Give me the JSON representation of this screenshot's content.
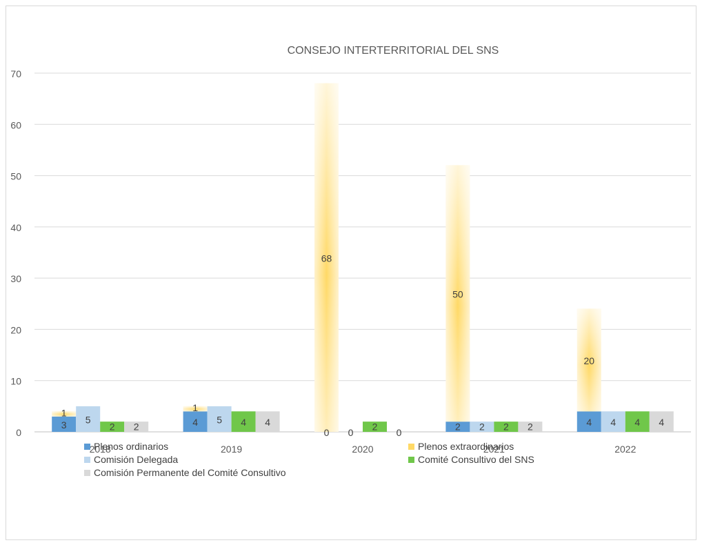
{
  "chart_data": {
    "type": "bar",
    "title": "CONSEJO INTERTERRITORIAL DEL SNS",
    "categories": [
      "2018",
      "2019",
      "2020",
      "2021",
      "2022"
    ],
    "ylim": [
      0,
      70
    ],
    "yticks": [
      0,
      10,
      20,
      30,
      40,
      50,
      60,
      70
    ],
    "ytick_labels": [
      "0",
      "10",
      "20",
      "30",
      "40",
      "50",
      "60",
      "70"
    ],
    "grid": true,
    "legend_position": "bottom",
    "series": [
      {
        "name": "Plenos ordinarios",
        "values": [
          3,
          4,
          0,
          2,
          4
        ],
        "labels": [
          "3",
          "4",
          "0",
          "2",
          "4"
        ],
        "color": "#5b9bd5",
        "stack": "plenos"
      },
      {
        "name": "Plenos extraordinarios",
        "values": [
          1,
          1,
          68,
          50,
          20
        ],
        "labels": [
          "1",
          "1",
          "68",
          "50",
          "20"
        ],
        "color": "#ffd966",
        "stack": "plenos"
      },
      {
        "name": "Comisión Delegada",
        "values": [
          5,
          5,
          0,
          2,
          4
        ],
        "labels": [
          "5",
          "5",
          "0",
          "2",
          "4"
        ],
        "color": "#bdd7ee"
      },
      {
        "name": "Comité Consultivo del SNS",
        "values": [
          2,
          4,
          2,
          2,
          4
        ],
        "labels": [
          "2",
          "4",
          "2",
          "2",
          "4"
        ],
        "color": "#70c74a"
      },
      {
        "name": "Comisión Permanente del Comité Consultivo",
        "values": [
          2,
          4,
          0,
          2,
          4
        ],
        "labels": [
          "2",
          "4",
          "0",
          "2",
          "4"
        ],
        "color": "#d9d9d9"
      }
    ]
  }
}
